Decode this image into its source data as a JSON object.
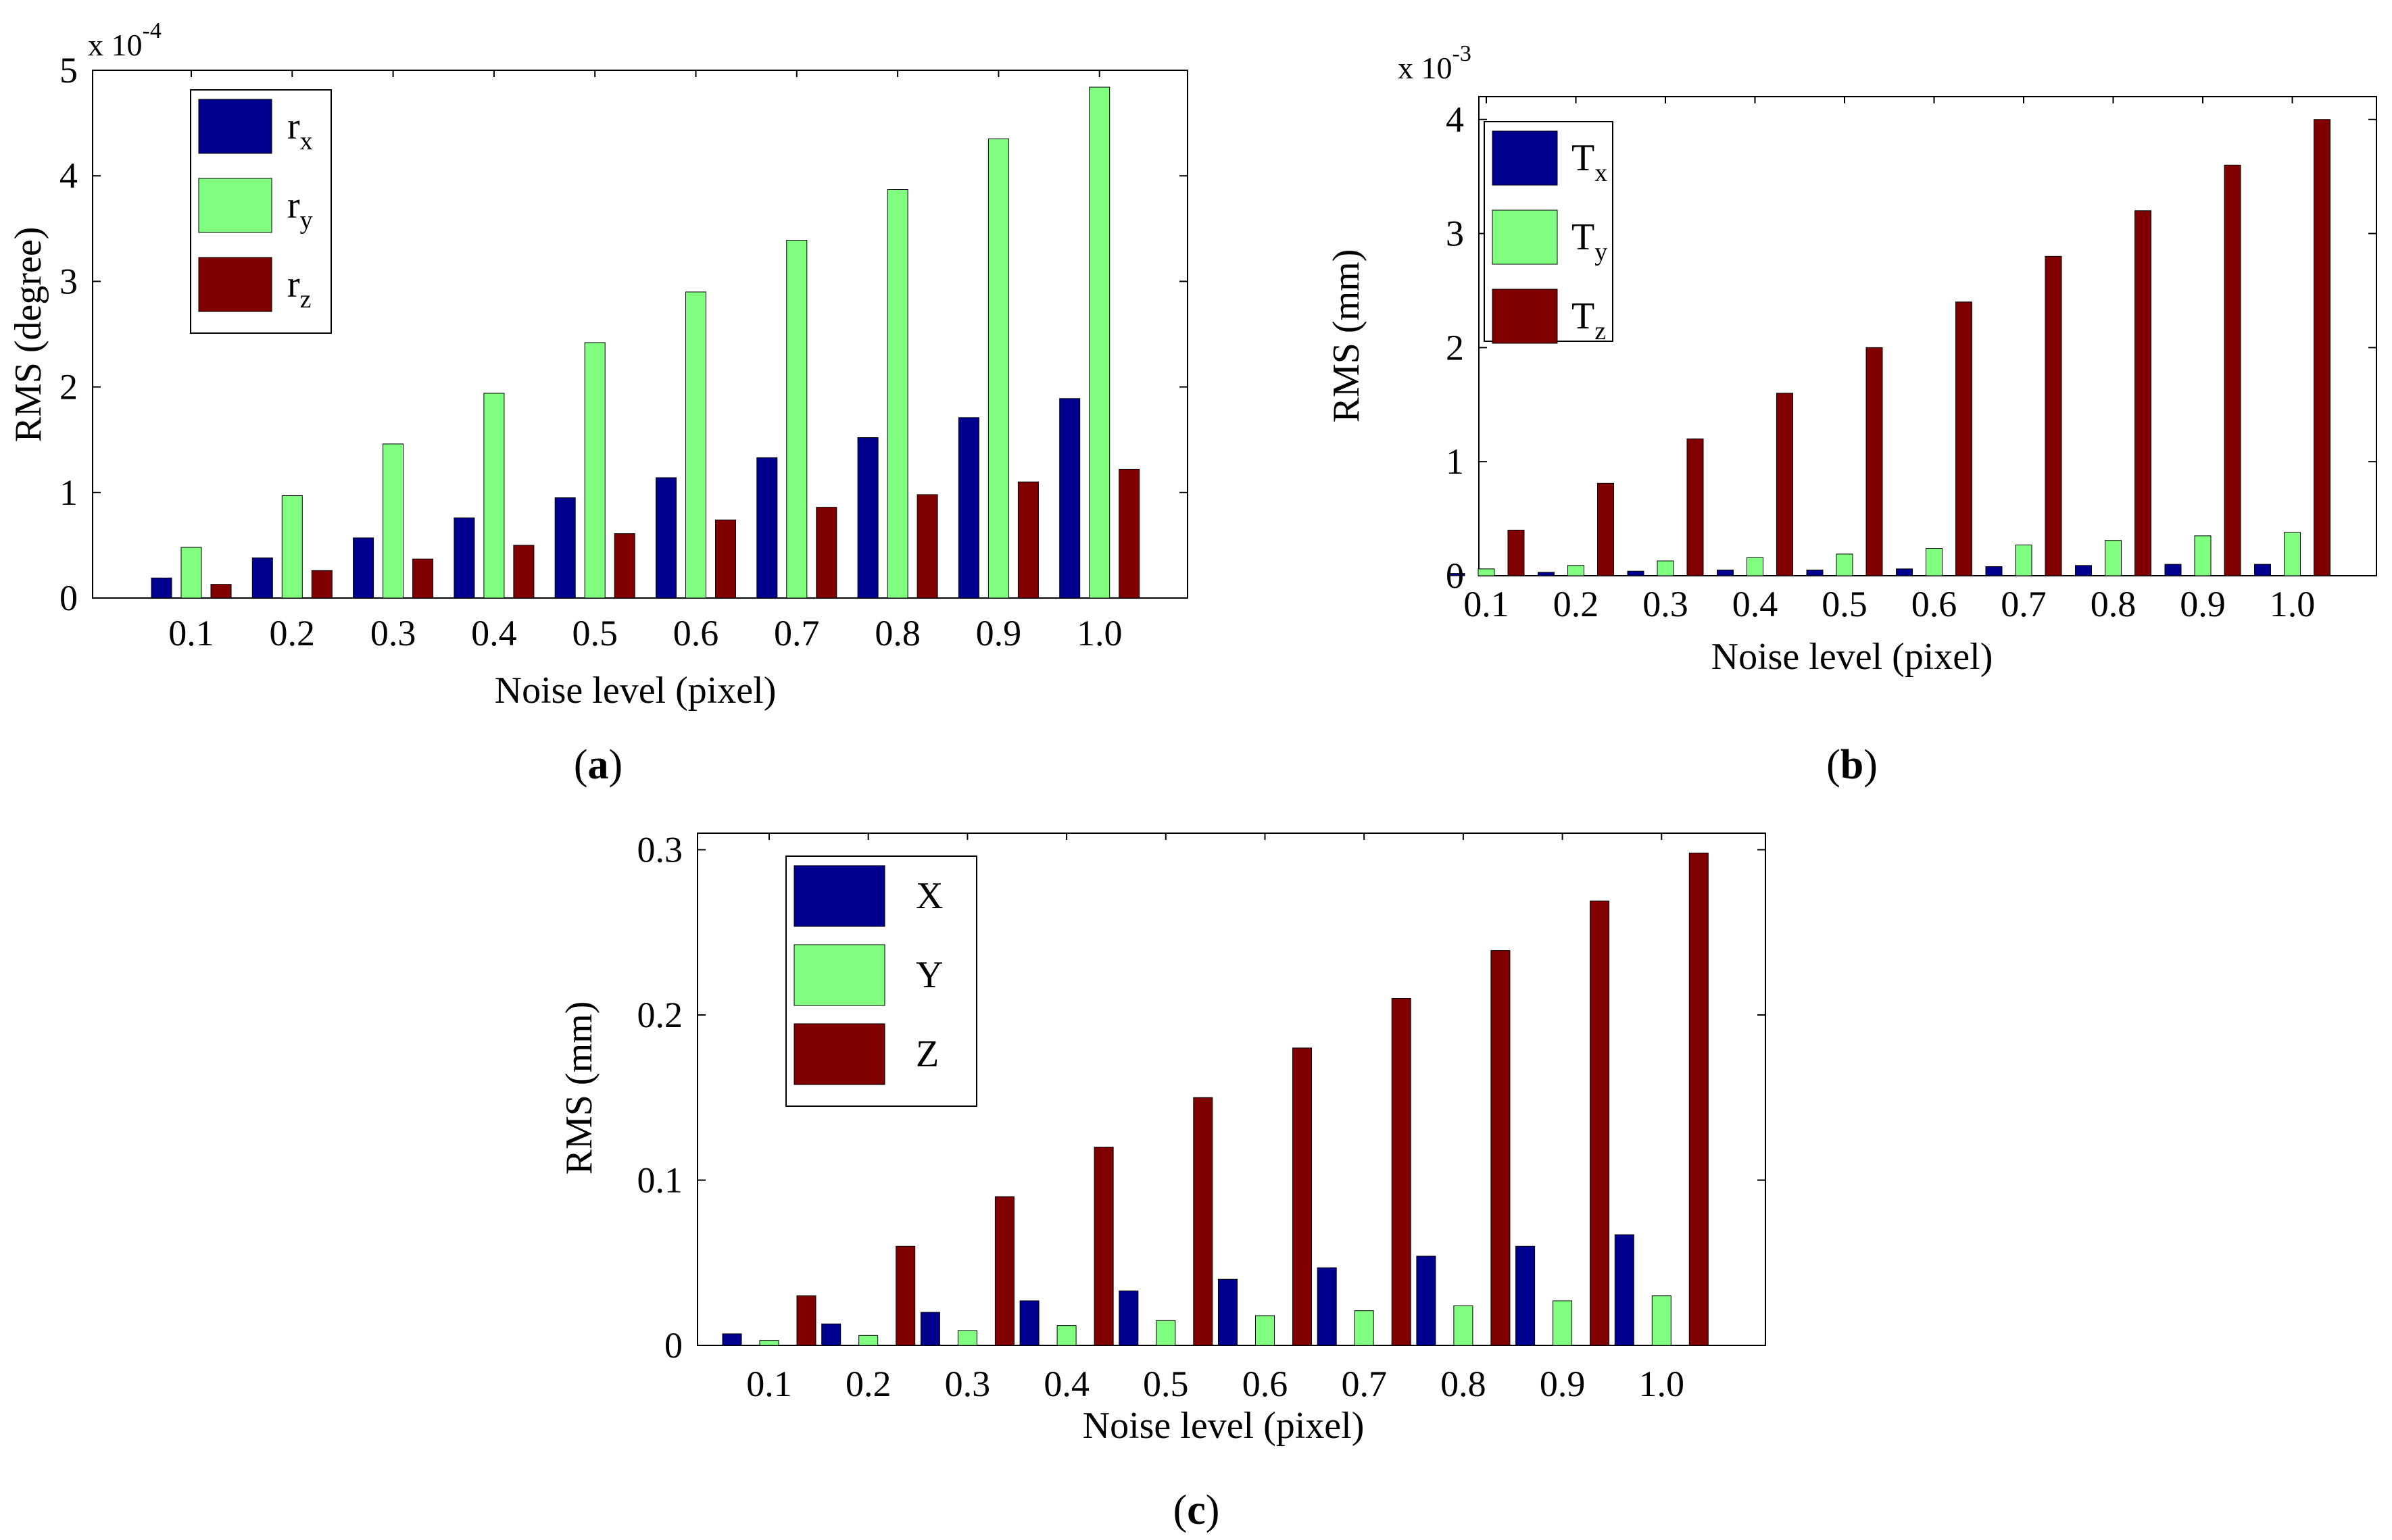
{
  "figure": {
    "panel_labels": [
      {
        "open": "(",
        "letter": "a",
        "close": ")"
      },
      {
        "open": "(",
        "letter": "b",
        "close": ")"
      },
      {
        "open": "(",
        "letter": "c",
        "close": ")"
      }
    ],
    "colors": {
      "dark_blue": "#00008f",
      "light_green": "#80ff80",
      "dark_red": "#800000"
    }
  },
  "chart_data": [
    {
      "type": "bar",
      "panel": "a",
      "xlabel": "Noise level (pixel)",
      "ylabel": "RMS (degree)",
      "categories": [
        "0.1",
        "0.2",
        "0.3",
        "0.4",
        "0.5",
        "0.6",
        "0.7",
        "0.8",
        "0.9",
        "1.0"
      ],
      "scale_multiplier": {
        "base": "x 10",
        "exponent": "-4"
      },
      "ylim": [
        0,
        5
      ],
      "yticks": [
        0,
        1,
        2,
        3,
        4,
        5
      ],
      "ytick_labels": [
        "0",
        "1",
        "2",
        "3",
        "4",
        "5"
      ],
      "legend_position": "top-left",
      "series": [
        {
          "name": "r",
          "sub": "x",
          "color": "#00008f",
          "values": [
            0.19,
            0.38,
            0.57,
            0.76,
            0.95,
            1.14,
            1.33,
            1.52,
            1.71,
            1.89
          ]
        },
        {
          "name": "r",
          "sub": "y",
          "color": "#80ff80",
          "values": [
            0.48,
            0.97,
            1.46,
            1.94,
            2.42,
            2.9,
            3.39,
            3.87,
            4.35,
            4.84
          ]
        },
        {
          "name": "r",
          "sub": "z",
          "color": "#800000",
          "values": [
            0.13,
            0.26,
            0.37,
            0.5,
            0.61,
            0.74,
            0.86,
            0.98,
            1.1,
            1.22
          ]
        }
      ]
    },
    {
      "type": "bar",
      "panel": "b",
      "xlabel": "Noise level (pixel)",
      "ylabel": "RMS (mm)",
      "categories": [
        "0.1",
        "0.2",
        "0.3",
        "0.4",
        "0.5",
        "0.6",
        "0.7",
        "0.8",
        "0.9",
        "1.0"
      ],
      "scale_multiplier": {
        "base": "x 10",
        "exponent": "-3"
      },
      "ylim": [
        0,
        4.2
      ],
      "yticks": [
        0,
        1,
        2,
        3,
        4
      ],
      "ytick_labels": [
        "0",
        "1",
        "2",
        "3",
        "4"
      ],
      "legend_position": "top-left",
      "series": [
        {
          "name": "T",
          "sub": "x",
          "color": "#00008f",
          "values": [
            0.02,
            0.03,
            0.04,
            0.05,
            0.05,
            0.06,
            0.08,
            0.09,
            0.1,
            0.1
          ]
        },
        {
          "name": "T",
          "sub": "y",
          "color": "#80ff80",
          "values": [
            0.06,
            0.09,
            0.13,
            0.16,
            0.19,
            0.24,
            0.27,
            0.31,
            0.35,
            0.38
          ]
        },
        {
          "name": "T",
          "sub": "z",
          "color": "#800000",
          "values": [
            0.4,
            0.81,
            1.2,
            1.6,
            2.0,
            2.4,
            2.8,
            3.2,
            3.6,
            4.0
          ]
        }
      ]
    },
    {
      "type": "bar",
      "panel": "c",
      "xlabel": "Noise level (pixel)",
      "ylabel": "RMS (mm)",
      "categories": [
        "0.1",
        "0.2",
        "0.3",
        "0.4",
        "0.5",
        "0.6",
        "0.7",
        "0.8",
        "0.9",
        "1.0"
      ],
      "ylim": [
        0,
        0.31
      ],
      "yticks": [
        0,
        0.1,
        0.2,
        0.3
      ],
      "ytick_labels": [
        "0",
        "0.1",
        "0.2",
        "0.3"
      ],
      "legend_position": "top-left",
      "series": [
        {
          "name": "X",
          "sub": "",
          "color": "#00008f",
          "values": [
            0.007,
            0.013,
            0.02,
            0.027,
            0.033,
            0.04,
            0.047,
            0.054,
            0.06,
            0.067
          ]
        },
        {
          "name": "Y",
          "sub": "",
          "color": "#80ff80",
          "values": [
            0.003,
            0.006,
            0.009,
            0.012,
            0.015,
            0.018,
            0.021,
            0.024,
            0.027,
            0.03
          ]
        },
        {
          "name": "Z",
          "sub": "",
          "color": "#800000",
          "values": [
            0.03,
            0.06,
            0.09,
            0.12,
            0.15,
            0.18,
            0.21,
            0.239,
            0.269,
            0.298
          ]
        }
      ]
    }
  ]
}
